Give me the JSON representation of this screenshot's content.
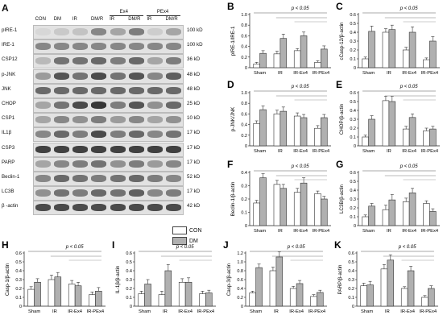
{
  "blot": {
    "panel_label": "A",
    "columns": [
      "CON",
      "DM",
      "IR",
      "DM/R",
      "IR",
      "DM/R",
      "IR",
      "DM/R"
    ],
    "groups": [
      {
        "label": "Ex4",
        "from": 4,
        "to": 5
      },
      {
        "label": "PEx4",
        "from": 6,
        "to": 7
      }
    ],
    "rows": [
      {
        "protein": "pIRE-1",
        "kda": "100 kD",
        "intensity": [
          0.05,
          0.12,
          0.15,
          0.45,
          0.3,
          0.5,
          0.1,
          0.3
        ]
      },
      {
        "protein": "IRE-1",
        "kda": "100 kD",
        "intensity": [
          0.45,
          0.45,
          0.45,
          0.45,
          0.45,
          0.45,
          0.45,
          0.45
        ]
      },
      {
        "protein": "CSP12",
        "kda": "36 kD",
        "intensity": [
          0.2,
          0.55,
          0.55,
          0.6,
          0.5,
          0.6,
          0.3,
          0.5
        ]
      },
      {
        "protein": "p-JNK",
        "kda": "48 kD",
        "intensity": [
          0.35,
          0.7,
          0.55,
          0.75,
          0.55,
          0.7,
          0.45,
          0.65
        ]
      },
      {
        "protein": "JNK",
        "kda": "48 kD",
        "intensity": [
          0.6,
          0.6,
          0.6,
          0.6,
          0.6,
          0.6,
          0.6,
          0.6
        ]
      },
      {
        "protein": "CHOP",
        "kda": "25 kD",
        "intensity": [
          0.3,
          0.55,
          0.75,
          0.85,
          0.5,
          0.7,
          0.4,
          0.6
        ]
      },
      {
        "protein": "CSP1",
        "kda": "10 kD",
        "intensity": [
          0.3,
          0.45,
          0.4,
          0.5,
          0.35,
          0.45,
          0.3,
          0.4
        ]
      },
      {
        "protein": "IL1β",
        "kda": "17 kD",
        "intensity": [
          0.45,
          0.6,
          0.5,
          0.75,
          0.5,
          0.6,
          0.45,
          0.55
        ]
      },
      {
        "protein": "CSP3",
        "kda": "17 kD",
        "intensity": [
          0.8,
          0.8,
          0.8,
          0.8,
          0.8,
          0.8,
          0.8,
          0.8
        ]
      },
      {
        "protein": "PARP",
        "kda": "17 kD",
        "intensity": [
          0.3,
          0.45,
          0.5,
          0.55,
          0.4,
          0.5,
          0.35,
          0.45
        ]
      },
      {
        "protein": "Beclin-1",
        "kda": "52 kD",
        "intensity": [
          0.45,
          0.6,
          0.55,
          0.5,
          0.55,
          0.6,
          0.5,
          0.45
        ]
      },
      {
        "protein": "LC3B",
        "kda": "17 kD",
        "intensity": [
          0.4,
          0.55,
          0.5,
          0.6,
          0.55,
          0.65,
          0.45,
          0.5
        ]
      },
      {
        "protein": "β -actin",
        "kda": "42 kD",
        "intensity": [
          0.75,
          0.75,
          0.75,
          0.75,
          0.75,
          0.75,
          0.75,
          0.75
        ]
      }
    ]
  },
  "legend": {
    "items": [
      {
        "label": "CON",
        "color": "#ffffff"
      },
      {
        "label": "DM",
        "color": "#b0b0b0"
      }
    ]
  },
  "colors": {
    "con": "#ffffff",
    "dm": "#b0b0b0",
    "stroke": "#333333"
  },
  "chart_data": [
    {
      "panel": "B",
      "type": "bar",
      "ylabel": "pIRE-1/IRE-1",
      "ylim": [
        0,
        1.0
      ],
      "yticks": [
        "0",
        "0.2",
        "0.4",
        "0.6",
        "0.8",
        "1.0"
      ],
      "categories": [
        "Sham",
        "IR",
        "IR-Ex4",
        "IR-PEx4"
      ],
      "annotation": "p < 0.05",
      "grid": false,
      "series": [
        {
          "name": "CON",
          "values": [
            0.07,
            0.26,
            0.32,
            0.1
          ],
          "errors": [
            0.03,
            0.05,
            0.04,
            0.03
          ]
        },
        {
          "name": "DM",
          "values": [
            0.27,
            0.55,
            0.6,
            0.35
          ],
          "errors": [
            0.05,
            0.08,
            0.07,
            0.06
          ]
        }
      ]
    },
    {
      "panel": "C",
      "type": "bar",
      "ylabel": "cCasp-12/β-actin",
      "ylim": [
        0,
        0.6
      ],
      "yticks": [
        "0",
        "0.1",
        "0.2",
        "0.3",
        "0.4",
        "0.5",
        "0.6"
      ],
      "categories": [
        "Sham",
        "IR",
        "IR-Ex4",
        "IR-PEx4"
      ],
      "annotation": "p < 0.05",
      "grid": false,
      "series": [
        {
          "name": "CON",
          "values": [
            0.1,
            0.4,
            0.2,
            0.09
          ],
          "errors": [
            0.02,
            0.04,
            0.03,
            0.02
          ]
        },
        {
          "name": "DM",
          "values": [
            0.41,
            0.43,
            0.4,
            0.3
          ],
          "errors": [
            0.06,
            0.05,
            0.06,
            0.05
          ]
        }
      ]
    },
    {
      "panel": "D",
      "type": "bar",
      "ylabel": "p-JNK/JNK",
      "ylim": [
        0,
        1.0
      ],
      "yticks": [
        "0",
        "0.2",
        "0.4",
        "0.6",
        "0.8",
        "1.0"
      ],
      "categories": [
        "Sham",
        "IR",
        "IR-Ex4",
        "IR-PEx4"
      ],
      "annotation": "p < 0.05",
      "grid": false,
      "series": [
        {
          "name": "CON",
          "values": [
            0.42,
            0.6,
            0.56,
            0.33
          ],
          "errors": [
            0.05,
            0.07,
            0.06,
            0.05
          ]
        },
        {
          "name": "DM",
          "values": [
            0.68,
            0.65,
            0.53,
            0.53
          ],
          "errors": [
            0.07,
            0.08,
            0.06,
            0.06
          ]
        }
      ]
    },
    {
      "panel": "E",
      "type": "bar",
      "ylabel": "CHOP/β-actin",
      "ylim": [
        0,
        0.6
      ],
      "yticks": [
        "0",
        "0.1",
        "0.2",
        "0.3",
        "0.4",
        "0.5",
        "0.6"
      ],
      "categories": [
        "Sham",
        "IR",
        "IR-Ex4",
        "IR-PEx4"
      ],
      "annotation": "p < 0.05",
      "grid": false,
      "series": [
        {
          "name": "CON",
          "values": [
            0.1,
            0.51,
            0.19,
            0.17
          ],
          "errors": [
            0.02,
            0.05,
            0.03,
            0.03
          ]
        },
        {
          "name": "DM",
          "values": [
            0.3,
            0.5,
            0.32,
            0.19
          ],
          "errors": [
            0.04,
            0.06,
            0.04,
            0.03
          ]
        }
      ]
    },
    {
      "panel": "F",
      "type": "bar",
      "ylabel": "Beclin-1/β-actin",
      "ylim": [
        0,
        0.4
      ],
      "yticks": [
        "0",
        "0.1",
        "0.2",
        "0.3",
        "0.4"
      ],
      "categories": [
        "Sham",
        "IR",
        "IR-Ex4",
        "IR-PEx4"
      ],
      "annotation": "p < 0.05",
      "grid": false,
      "series": [
        {
          "name": "CON",
          "values": [
            0.17,
            0.31,
            0.25,
            0.24
          ],
          "errors": [
            0.02,
            0.03,
            0.03,
            0.02
          ]
        },
        {
          "name": "DM",
          "values": [
            0.36,
            0.28,
            0.32,
            0.2
          ],
          "errors": [
            0.03,
            0.03,
            0.04,
            0.02
          ]
        }
      ]
    },
    {
      "panel": "G",
      "type": "bar",
      "ylabel": "LC3B/β-actin",
      "ylim": [
        0,
        0.6
      ],
      "yticks": [
        "0",
        "0.1",
        "0.2",
        "0.3",
        "0.4",
        "0.5",
        "0.6"
      ],
      "categories": [
        "Sham",
        "IR",
        "IR-Ex4",
        "IR-PEx4"
      ],
      "annotation": "p < 0.05",
      "grid": false,
      "series": [
        {
          "name": "CON",
          "values": [
            0.1,
            0.18,
            0.27,
            0.25
          ],
          "errors": [
            0.02,
            0.05,
            0.04,
            0.03
          ]
        },
        {
          "name": "DM",
          "values": [
            0.22,
            0.29,
            0.37,
            0.16
          ],
          "errors": [
            0.03,
            0.06,
            0.05,
            0.03
          ]
        }
      ]
    },
    {
      "panel": "H",
      "type": "bar",
      "ylabel": "Casp-1/β-actin",
      "ylim": [
        0,
        0.6
      ],
      "yticks": [
        "0",
        "0.1",
        "0.2",
        "0.3",
        "0.4",
        "0.5",
        "0.6"
      ],
      "categories": [
        "Sham",
        "IR",
        "IR-Ex4",
        "IR-PEx4"
      ],
      "annotation": "p < 0.05",
      "grid": false,
      "series": [
        {
          "name": "CON",
          "values": [
            0.19,
            0.3,
            0.25,
            0.13
          ],
          "errors": [
            0.03,
            0.05,
            0.04,
            0.03
          ]
        },
        {
          "name": "DM",
          "values": [
            0.27,
            0.33,
            0.23,
            0.17
          ],
          "errors": [
            0.04,
            0.05,
            0.04,
            0.04
          ]
        }
      ]
    },
    {
      "panel": "I",
      "type": "bar",
      "ylabel": "IL-1β/β-actin",
      "ylim": [
        0,
        0.6
      ],
      "yticks": [
        "0",
        "0.1",
        "0.2",
        "0.3",
        "0.4",
        "0.5",
        "0.6"
      ],
      "categories": [
        "Sham",
        "IR",
        "IR-Ex4",
        "IR-PEx4"
      ],
      "annotation": "p < 0.05",
      "grid": false,
      "series": [
        {
          "name": "CON",
          "values": [
            0.14,
            0.13,
            0.27,
            0.14
          ],
          "errors": [
            0.03,
            0.04,
            0.04,
            0.03
          ]
        },
        {
          "name": "DM",
          "values": [
            0.25,
            0.4,
            0.27,
            0.15
          ],
          "errors": [
            0.05,
            0.07,
            0.05,
            0.03
          ]
        }
      ]
    },
    {
      "panel": "J",
      "type": "bar",
      "ylabel": "Casp-3/β-actin",
      "ylim": [
        0,
        1.2
      ],
      "yticks": [
        "0",
        "0.2",
        "0.4",
        "0.6",
        "0.8",
        "1.0",
        "1.2"
      ],
      "categories": [
        "Sham",
        "IR",
        "IR-Ex4",
        "IR-PEx4"
      ],
      "annotation": "p < 0.05",
      "grid": false,
      "series": [
        {
          "name": "CON",
          "values": [
            0.3,
            0.8,
            0.4,
            0.22
          ],
          "errors": [
            0.04,
            0.08,
            0.05,
            0.04
          ]
        },
        {
          "name": "DM",
          "values": [
            0.87,
            1.11,
            0.51,
            0.31
          ],
          "errors": [
            0.08,
            0.12,
            0.07,
            0.05
          ]
        }
      ]
    },
    {
      "panel": "K",
      "type": "bar",
      "ylabel": "PARP/β-actin",
      "ylim": [
        0,
        0.6
      ],
      "yticks": [
        "0",
        "0.1",
        "0.2",
        "0.3",
        "0.4",
        "0.5",
        "0.6"
      ],
      "categories": [
        "Sham",
        "IR",
        "IR-Ex4",
        "IR-PEx4"
      ],
      "annotation": "p < 0.05",
      "grid": false,
      "series": [
        {
          "name": "CON",
          "values": [
            0.23,
            0.42,
            0.2,
            0.1
          ],
          "errors": [
            0.03,
            0.05,
            0.02,
            0.02
          ]
        },
        {
          "name": "DM",
          "values": [
            0.24,
            0.52,
            0.4,
            0.2
          ],
          "errors": [
            0.04,
            0.06,
            0.05,
            0.03
          ]
        }
      ]
    }
  ]
}
